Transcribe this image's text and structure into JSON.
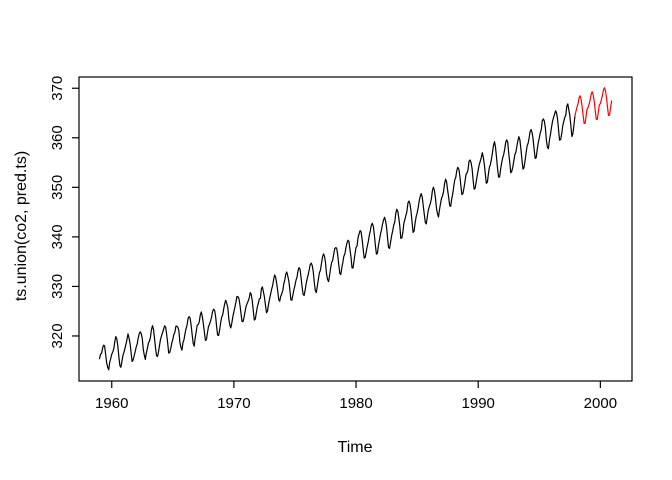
{
  "colors": {
    "background": "#FFFFFF",
    "axis": "#000000",
    "observed_series": "#000000",
    "forecast_series": "#FF0000"
  },
  "chart_data": {
    "type": "line",
    "title": "",
    "xlabel": "Time",
    "ylabel": "ts.union(co2, pred.ts)",
    "x_ticks": [
      1960,
      1970,
      1980,
      1990,
      2000
    ],
    "y_ticks": [
      320,
      330,
      340,
      350,
      360,
      370
    ],
    "xlim": [
      1957.32,
      2002.59
    ],
    "ylim": [
      310.91,
      372.27
    ],
    "grid": false,
    "legend": null,
    "frequency": "monthly",
    "series": [
      {
        "name": "co2",
        "color": "#000000",
        "start": 1959.0,
        "step": 0.0833333,
        "values": [
          315.42,
          316.31,
          316.5,
          317.56,
          318.13,
          318.0,
          316.39,
          314.65,
          313.68,
          313.18,
          314.66,
          315.43,
          316.27,
          316.81,
          317.42,
          318.87,
          319.87,
          319.43,
          318.01,
          315.74,
          314.0,
          313.68,
          314.84,
          316.03,
          316.73,
          317.54,
          318.38,
          319.31,
          320.42,
          319.61,
          318.42,
          316.63,
          314.83,
          315.16,
          315.94,
          316.85,
          317.78,
          318.4,
          319.53,
          320.42,
          320.85,
          320.45,
          319.45,
          317.25,
          316.11,
          315.27,
          316.53,
          317.53,
          318.58,
          318.92,
          319.7,
          321.22,
          322.08,
          321.31,
          319.58,
          317.61,
          316.05,
          315.83,
          316.91,
          318.2,
          319.41,
          320.07,
          320.74,
          321.4,
          322.06,
          321.73,
          320.27,
          318.54,
          316.54,
          316.71,
          317.53,
          318.55,
          319.27,
          320.28,
          320.73,
          321.97,
          322.0,
          321.71,
          321.05,
          318.71,
          317.66,
          317.14,
          318.7,
          319.25,
          320.46,
          321.43,
          322.23,
          323.54,
          323.91,
          323.59,
          322.24,
          320.2,
          318.48,
          317.94,
          319.63,
          320.87,
          322.17,
          322.34,
          322.88,
          324.25,
          324.83,
          323.93,
          322.38,
          320.76,
          319.1,
          319.24,
          320.56,
          321.8,
          322.4,
          322.99,
          323.73,
          324.86,
          325.4,
          325.2,
          323.98,
          321.95,
          320.18,
          320.09,
          321.16,
          322.74,
          323.83,
          324.26,
          325.47,
          326.5,
          327.21,
          326.54,
          325.72,
          323.5,
          322.22,
          321.62,
          322.69,
          323.95,
          324.89,
          325.82,
          326.77,
          327.97,
          327.91,
          327.5,
          326.18,
          324.53,
          322.93,
          322.9,
          323.85,
          324.96,
          326.01,
          326.51,
          327.01,
          327.62,
          328.76,
          328.4,
          327.2,
          325.27,
          323.2,
          323.4,
          324.63,
          325.85,
          326.6,
          327.47,
          327.58,
          329.56,
          329.9,
          328.92,
          327.88,
          326.16,
          324.68,
          325.04,
          326.34,
          327.39,
          328.37,
          329.4,
          330.14,
          331.33,
          332.31,
          331.9,
          330.7,
          329.15,
          327.35,
          327.02,
          327.99,
          328.48,
          329.18,
          330.55,
          331.32,
          332.48,
          332.92,
          332.08,
          331.01,
          329.23,
          327.27,
          327.21,
          328.29,
          329.41,
          330.23,
          331.25,
          331.87,
          333.14,
          333.8,
          333.43,
          331.73,
          329.9,
          328.4,
          328.17,
          329.32,
          330.59,
          331.58,
          332.39,
          333.33,
          334.41,
          334.71,
          334.17,
          332.89,
          330.77,
          329.14,
          328.78,
          330.14,
          331.52,
          332.75,
          333.24,
          334.53,
          335.9,
          336.57,
          336.1,
          334.76,
          332.59,
          331.42,
          330.98,
          332.24,
          333.68,
          334.8,
          335.22,
          336.47,
          337.59,
          337.84,
          337.72,
          336.37,
          334.51,
          332.6,
          332.38,
          333.75,
          334.78,
          336.05,
          336.59,
          337.79,
          338.71,
          339.3,
          339.12,
          337.56,
          335.92,
          333.75,
          333.7,
          335.12,
          336.56,
          337.84,
          338.19,
          339.91,
          340.6,
          341.29,
          341.0,
          339.39,
          337.43,
          335.72,
          335.84,
          336.93,
          338.04,
          339.06,
          340.3,
          341.21,
          342.33,
          342.74,
          342.08,
          340.32,
          338.26,
          336.52,
          336.68,
          338.19,
          339.44,
          340.57,
          341.44,
          342.53,
          343.39,
          343.96,
          343.18,
          341.88,
          339.65,
          337.81,
          337.69,
          339.09,
          340.32,
          341.2,
          342.35,
          342.93,
          344.77,
          345.58,
          345.14,
          343.81,
          342.21,
          339.69,
          339.82,
          340.98,
          342.82,
          343.52,
          344.33,
          345.11,
          346.88,
          347.25,
          346.62,
          345.22,
          343.11,
          340.9,
          341.18,
          342.8,
          344.04,
          344.79,
          345.82,
          347.25,
          348.17,
          348.74,
          348.07,
          346.38,
          344.51,
          342.92,
          342.62,
          344.06,
          345.38,
          346.11,
          346.78,
          347.68,
          349.37,
          350.03,
          349.37,
          347.76,
          345.73,
          344.68,
          343.99,
          345.48,
          346.72,
          347.84,
          348.29,
          349.23,
          350.8,
          351.66,
          351.07,
          349.33,
          347.92,
          346.27,
          346.18,
          347.64,
          348.78,
          350.25,
          351.54,
          352.05,
          353.41,
          354.04,
          353.62,
          352.22,
          350.27,
          348.55,
          348.72,
          349.91,
          351.18,
          352.6,
          352.92,
          353.53,
          355.26,
          355.52,
          354.97,
          353.75,
          351.52,
          349.64,
          349.83,
          351.14,
          352.37,
          353.5,
          354.55,
          355.23,
          356.04,
          357.0,
          356.07,
          354.67,
          352.76,
          350.82,
          351.04,
          352.69,
          354.07,
          354.59,
          355.63,
          357.03,
          358.48,
          359.22,
          358.12,
          356.06,
          353.92,
          352.05,
          352.11,
          353.64,
          354.89,
          355.88,
          356.63,
          357.72,
          359.07,
          359.58,
          359.17,
          356.94,
          354.92,
          352.94,
          353.23,
          354.09,
          355.33,
          356.63,
          357.1,
          358.32,
          359.41,
          360.23,
          359.55,
          357.53,
          355.48,
          353.67,
          353.95,
          355.3,
          356.78,
          358.34,
          358.89,
          359.95,
          361.25,
          361.67,
          360.94,
          359.55,
          357.49,
          355.84,
          356.0,
          357.59,
          359.05,
          359.98,
          361.03,
          361.66,
          363.48,
          363.82,
          363.3,
          361.94,
          359.5,
          358.11,
          357.8,
          359.61,
          360.74,
          362.09,
          363.29,
          364.06,
          364.76,
          365.45,
          365.01,
          363.7,
          361.54,
          359.51,
          359.65,
          360.8,
          362.38,
          363.23,
          364.06,
          364.61,
          366.4,
          366.84,
          365.68,
          364.52,
          362.57,
          360.24,
          360.83,
          362.49,
          364.34
        ]
      },
      {
        "name": "pred.ts",
        "color": "#FF0000",
        "start": 1998.0,
        "step": 0.0833333,
        "connect_to_previous": true,
        "values": [
          365.31,
          366.09,
          366.87,
          368.01,
          368.48,
          367.86,
          366.45,
          364.56,
          362.9,
          362.93,
          364.34,
          365.81,
          366.12,
          366.9,
          367.68,
          368.82,
          369.29,
          368.67,
          367.26,
          365.37,
          363.71,
          363.74,
          365.15,
          366.62,
          366.93,
          367.71,
          368.49,
          369.63,
          370.1,
          369.48,
          368.07,
          366.18,
          364.52,
          364.55,
          365.96,
          367.43
        ]
      }
    ]
  }
}
